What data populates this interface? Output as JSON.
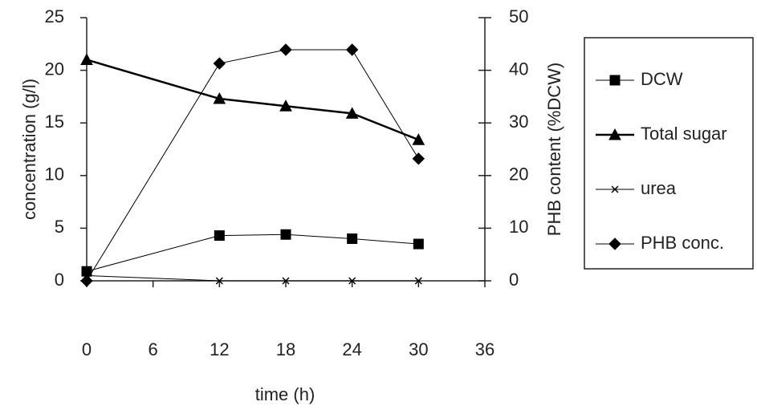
{
  "chart_data": {
    "type": "line",
    "x": [
      0,
      12,
      18,
      24,
      30
    ],
    "xlabel": "time (h)",
    "ylabel": "concentration (g/l)",
    "y2label": "PHB content (%DCW)",
    "xlim": [
      0,
      36
    ],
    "xticks": [
      0,
      6,
      12,
      18,
      24,
      30,
      36
    ],
    "ylim": [
      0,
      25
    ],
    "yticks": [
      0,
      5,
      10,
      15,
      20,
      25
    ],
    "y2lim": [
      0,
      50
    ],
    "y2ticks": [
      0,
      10,
      20,
      30,
      40,
      50
    ],
    "legend": "right",
    "series": [
      {
        "name": "DCW",
        "color": "#000000",
        "marker": "square",
        "line_width": 1,
        "values": [
          0.9,
          4.3,
          4.4,
          4.0,
          3.5
        ]
      },
      {
        "name": "Total sugar",
        "color": "#000000",
        "marker": "triangle",
        "line_width": 2.5,
        "values": [
          21.0,
          17.3,
          16.6,
          15.9,
          13.4
        ]
      },
      {
        "name": "urea",
        "color": "#000000",
        "marker": "x",
        "line_width": 1,
        "values": [
          0.5,
          0,
          0,
          0,
          0
        ]
      },
      {
        "name": "PHB conc.",
        "color": "#000000",
        "marker": "diamond",
        "line_width": 1,
        "axis": "y2",
        "values": [
          0,
          41.3,
          43.9,
          43.9,
          23.2
        ]
      }
    ]
  }
}
